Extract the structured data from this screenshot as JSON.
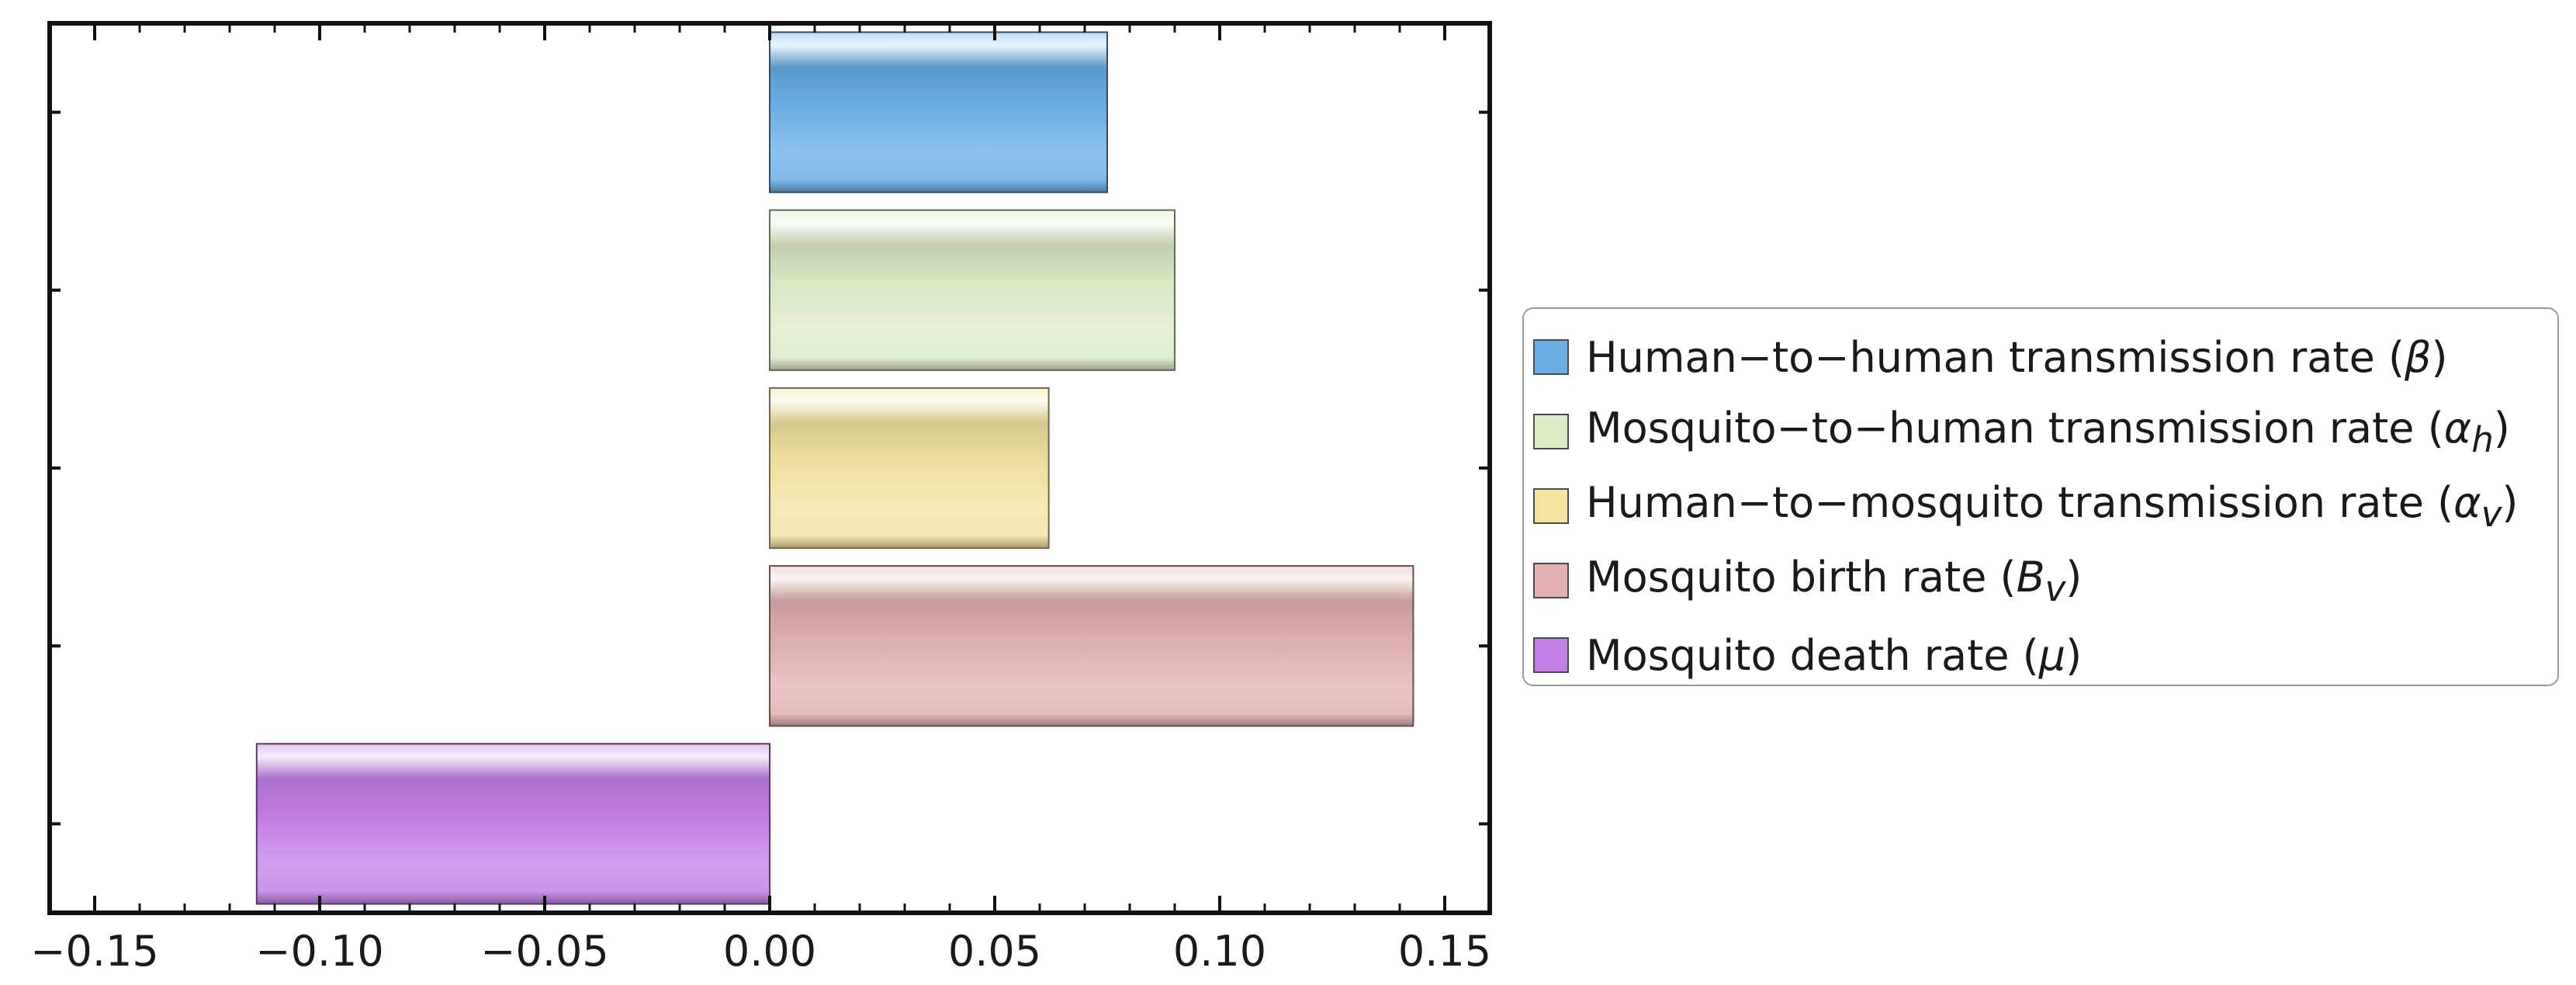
{
  "chart_data": {
    "type": "bar",
    "orientation": "horizontal",
    "title": "",
    "xlabel": "",
    "ylabel": "",
    "xlim": [
      -0.16,
      0.16
    ],
    "x_ticks": [
      -0.15,
      -0.1,
      -0.05,
      0.0,
      0.05,
      0.1,
      0.15
    ],
    "x_tick_labels": [
      "−0.15",
      "−0.10",
      "−0.05",
      "0.00",
      "0.05",
      "0.10",
      "0.15"
    ],
    "grid": false,
    "legend_position": "right",
    "categories": [
      "Human−to−human transmission rate (β)",
      "Mosquito−to−human transmission rate (αh)",
      "Human−to−mosquito transmission rate (αv)",
      "Mosquito birth rate (Bv)",
      "Mosquito death rate (μ)"
    ],
    "values": [
      0.075,
      0.09,
      0.062,
      0.143,
      -0.114
    ],
    "colors": [
      "#6aaee6",
      "#dcebc6",
      "#f3e2a0",
      "#e2b0b0",
      "#c47fe6"
    ]
  },
  "legend": {
    "items": [
      {
        "label": "Human−to−human transmission rate (",
        "symbol": "β",
        "sub": "",
        "close": ")"
      },
      {
        "label": "Mosquito−to−human transmission rate (",
        "symbol": "α",
        "sub": "h",
        "close": ")"
      },
      {
        "label": "Human−to−mosquito transmission rate (",
        "symbol": "α",
        "sub": "v",
        "close": ")"
      },
      {
        "label": "Mosquito birth rate (",
        "symbol": "B",
        "sub": "v",
        "close": ")"
      },
      {
        "label": "Mosquito death rate (",
        "symbol": "μ",
        "sub": "",
        "close": ")"
      }
    ]
  }
}
